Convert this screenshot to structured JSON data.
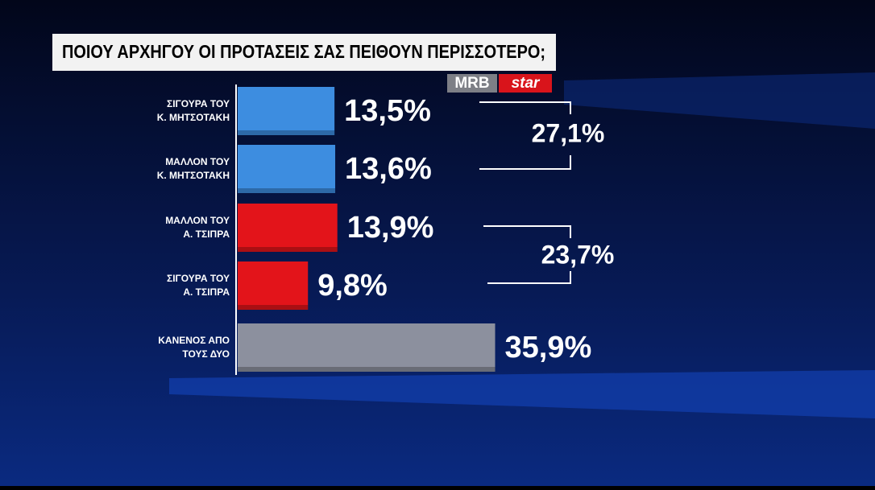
{
  "chart_data": {
    "type": "bar",
    "orientation": "horizontal",
    "title": "ΠΟΙΟΥ ΑΡΧΗΓΟΥ ΟΙ ΠΡΟΤΑΣΕΙΣ ΣΑΣ ΠΕΙΘΟΥΝ ΠΕΡΙΣΣΟΤΕΡΟ;",
    "logo": [
      "MRB",
      "star"
    ],
    "categories": [
      [
        "ΣΙΓΟΥΡΑ ΤΟΥ",
        "Κ. ΜΗΤΣΟΤΑΚΗ"
      ],
      [
        "ΜΑΛΛΟΝ ΤΟΥ",
        "Κ. ΜΗΤΣΟΤΑΚΗ"
      ],
      [
        "ΜΑΛΛΟΝ ΤΟΥ",
        "Α. ΤΣΙΠΡΑ"
      ],
      [
        "ΣΙΓΟΥΡΑ ΤΟΥ",
        "Α. ΤΣΙΠΡΑ"
      ],
      [
        "ΚΑΝΕΝΟΣ ΑΠΟ",
        "ΤΟΥΣ ΔΥΟ"
      ]
    ],
    "values": [
      13.5,
      13.6,
      13.9,
      9.8,
      35.9
    ],
    "value_labels": [
      "13,5%",
      "13,6%",
      "13,9%",
      "9,8%",
      "35,9%"
    ],
    "colors": [
      "#3d8de0",
      "#3d8de0",
      "#e3141a",
      "#e3141a",
      "#8c909e"
    ],
    "annotations": [
      "27,1%",
      "23,7%"
    ],
    "xlim": [
      0,
      40
    ]
  }
}
